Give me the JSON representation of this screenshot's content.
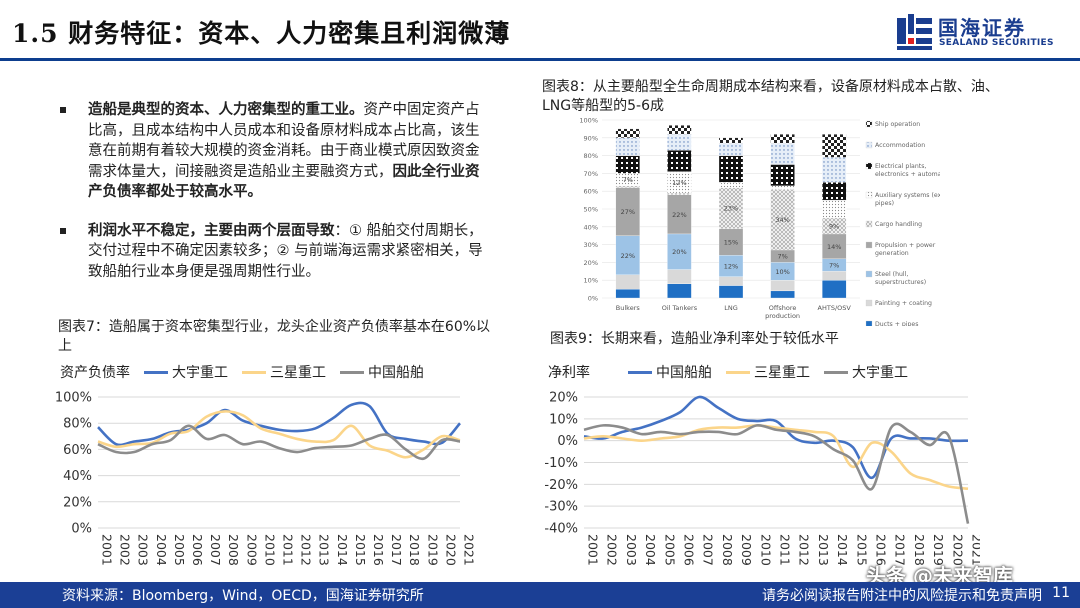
{
  "header": {
    "title": "1.5 财务特征：资本、人力密集且利润微薄",
    "logo_cn": "国海证券",
    "logo_en": "SEALAND SECURITIES"
  },
  "bullets": [
    {
      "bold_lead": "造船是典型的资本、人力密集型的重工业。",
      "body": "资产中固定资产占比高，且成本结构中人员成本和设备原材料成本占比高，该生意在前期有着较大规模的资金消耗。由于商业模式原因致资金需求体量大，间接融资是造船业主要融资方式，",
      "bold_tail": "因此全行业资产负债率都处于较高水平。"
    },
    {
      "bold_lead": "利润水平不稳定，主要由两个层面导致",
      "body": "：① 船舶交付周期长，交付过程中不确定因素较多；② 与前端海运需求紧密相关，导致船舶行业本身便是强周期性行业。"
    }
  ],
  "captions": {
    "fig8": "图表8：从主要船型全生命周期成本结构来看，设备原材料成本占散、油、LNG等船型的5-6成",
    "fig7": "图表7：造船属于资本密集型行业，龙头企业资产负债率基本在60%以上",
    "fig9": "图表9：长期来看，造船业净利率处于较低水平"
  },
  "footer": {
    "source": "资料来源：Bloomberg，Wind，OECD，国海证券研究所",
    "disclaimer": "请务必阅读报告附注中的风险提示和免责声明",
    "page": "11"
  },
  "watermark": "头条 @未来智库",
  "colors": {
    "blue": "#4472c4",
    "orange": "#fbd58a",
    "gray": "#8c8c8c",
    "brand": "#1b3f95"
  },
  "chart_data": [
    {
      "id": "fig8",
      "type": "bar",
      "stacked": true,
      "title": "",
      "categories": [
        "Bulkers",
        "Oil Tankers",
        "LNG",
        "Offshore production",
        "AHTS/OSV"
      ],
      "y_ticks": [
        "0%",
        "10%",
        "20%",
        "30%",
        "40%",
        "50%",
        "60%",
        "70%",
        "80%",
        "90%",
        "100%"
      ],
      "ylim": [
        0,
        100
      ],
      "series": [
        {
          "name": "Ducts + pipes",
          "values": [
            5,
            8,
            7,
            4,
            10
          ],
          "color": "#1f6fc4",
          "pattern": "solid"
        },
        {
          "name": "Painting + coating",
          "values": [
            8,
            8,
            5,
            6,
            5
          ],
          "color": "#d9d9d9",
          "pattern": "solid"
        },
        {
          "name": "Steel (hull, superstructures)",
          "values": [
            22,
            20,
            12,
            10,
            7
          ],
          "color": "#9dc3e6",
          "pattern": "solid"
        },
        {
          "name": "Propulsion + power generation",
          "values": [
            27,
            22,
            15,
            7,
            14
          ],
          "color": "#a6a6a6",
          "pattern": "solid"
        },
        {
          "name": "Cargo handling",
          "values": [
            1,
            1,
            23,
            34,
            9
          ],
          "color": "#e6e6e6",
          "pattern": "cross"
        },
        {
          "name": "Auxiliary systems (exp. pipes)",
          "values": [
            7,
            12,
            3,
            2,
            10
          ],
          "color": "#f2f2f2",
          "pattern": "dots"
        },
        {
          "name": "Electrical plants, electronics + automation",
          "values": [
            10,
            12,
            15,
            12,
            10
          ],
          "color": "#111111",
          "pattern": "grid"
        },
        {
          "name": "Accommodation",
          "values": [
            10,
            9,
            7,
            12,
            14
          ],
          "color": "#dae8f5",
          "pattern": "light"
        },
        {
          "name": "Ship operation",
          "values": [
            5,
            5,
            3,
            5,
            13
          ],
          "color": "#333333",
          "pattern": "check"
        }
      ],
      "data_labels": [
        {
          "category": "Bulkers",
          "series": "Steel (hull, superstructures)",
          "text": "22%"
        },
        {
          "category": "Bulkers",
          "series": "Propulsion + power generation",
          "text": "27%"
        },
        {
          "category": "Bulkers",
          "series": "Auxiliary systems (exp. pipes)",
          "text": "7%"
        },
        {
          "category": "Oil Tankers",
          "series": "Steel (hull, superstructures)",
          "text": "20%"
        },
        {
          "category": "Oil Tankers",
          "series": "Propulsion + power generation",
          "text": "22%"
        },
        {
          "category": "Oil Tankers",
          "series": "Auxiliary systems (exp. pipes)",
          "text": "12%"
        },
        {
          "category": "LNG",
          "series": "Steel (hull, superstructures)",
          "text": "12%"
        },
        {
          "category": "LNG",
          "series": "Propulsion + power generation",
          "text": "15%"
        },
        {
          "category": "LNG",
          "series": "Cargo handling",
          "text": "23%"
        },
        {
          "category": "Offshore production",
          "series": "Steel (hull, superstructures)",
          "text": "10%"
        },
        {
          "category": "Offshore production",
          "series": "Propulsion + power generation",
          "text": "7%"
        },
        {
          "category": "Offshore production",
          "series": "Cargo handling",
          "text": "34%"
        },
        {
          "category": "AHTS/OSV",
          "series": "Steel (hull, superstructures)",
          "text": "7%"
        },
        {
          "category": "AHTS/OSV",
          "series": "Propulsion + power generation",
          "text": "14%"
        },
        {
          "category": "AHTS/OSV",
          "series": "Cargo handling",
          "text": "9%"
        }
      ]
    },
    {
      "id": "fig7",
      "type": "line",
      "ylabel": "资产负债率",
      "ylim": [
        0,
        100
      ],
      "y_ticks": [
        "0%",
        "20%",
        "40%",
        "60%",
        "80%",
        "100%"
      ],
      "x": [
        "2001",
        "2002",
        "2003",
        "2004",
        "2005",
        "2006",
        "2007",
        "2008",
        "2009",
        "2010",
        "2011",
        "2012",
        "2013",
        "2014",
        "2015",
        "2016",
        "2017",
        "2018",
        "2019",
        "2020",
        "2021"
      ],
      "series": [
        {
          "name": "大宇重工",
          "color": "#4472c4",
          "values": [
            77,
            64,
            66,
            68,
            73,
            75,
            80,
            90,
            82,
            78,
            75,
            74,
            76,
            84,
            94,
            93,
            72,
            68,
            66,
            65,
            80
          ]
        },
        {
          "name": "三星重工",
          "color": "#fbd58a",
          "values": [
            66,
            62,
            64,
            65,
            72,
            74,
            85,
            89,
            86,
            76,
            72,
            68,
            66,
            67,
            78,
            63,
            59,
            54,
            60,
            70,
            67
          ]
        },
        {
          "name": "中国船舶",
          "color": "#8c8c8c",
          "values": [
            64,
            58,
            58,
            64,
            67,
            78,
            68,
            71,
            64,
            66,
            61,
            58,
            61,
            62,
            63,
            68,
            71,
            60,
            53,
            67,
            66
          ]
        }
      ]
    },
    {
      "id": "fig9",
      "type": "line",
      "ylabel": "净利率",
      "ylim": [
        -40,
        20
      ],
      "y_ticks": [
        "-40%",
        "-30%",
        "-20%",
        "-10%",
        "0%",
        "10%",
        "20%"
      ],
      "x": [
        "2001",
        "2002",
        "2003",
        "2004",
        "2005",
        "2006",
        "2007",
        "2008",
        "2009",
        "2010",
        "2011",
        "2012",
        "2013",
        "2014",
        "2015",
        "2016",
        "2017",
        "2018",
        "2019",
        "2020",
        "2021"
      ],
      "series": [
        {
          "name": "中国船舶",
          "color": "#4472c4",
          "values": [
            2,
            1,
            4,
            6,
            9,
            13,
            20,
            15,
            10,
            9,
            9,
            1,
            -1,
            0,
            -3,
            -17,
            1,
            1,
            1,
            0,
            0
          ]
        },
        {
          "name": "三星重工",
          "color": "#fbd58a",
          "values": [
            1,
            2,
            1,
            0,
            1,
            2,
            5,
            6,
            6,
            7,
            6,
            5,
            4,
            2,
            -12,
            -1,
            -5,
            -15,
            -18,
            -21,
            -22
          ]
        },
        {
          "name": "大宇重工",
          "color": "#8c8c8c",
          "values": [
            5,
            7,
            6,
            3,
            4,
            3,
            4,
            4,
            3,
            7,
            5,
            4,
            2,
            -4,
            -9,
            -22,
            6,
            4,
            -2,
            2,
            -38
          ]
        }
      ]
    }
  ]
}
